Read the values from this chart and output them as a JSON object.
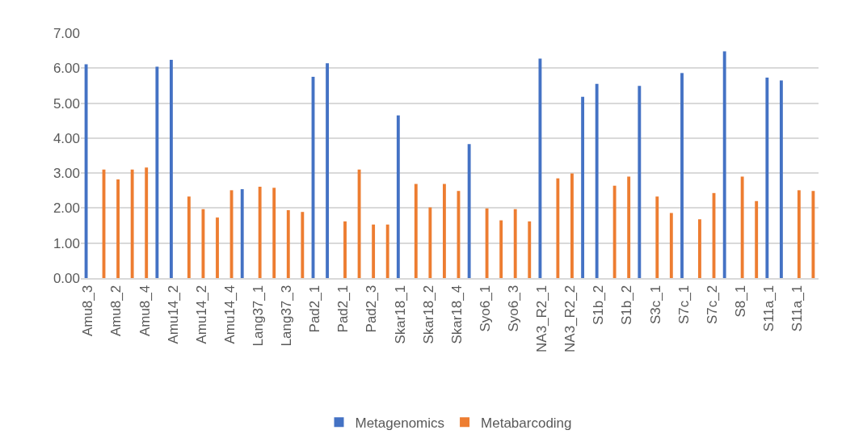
{
  "chart_data": {
    "type": "bar",
    "categories": [
      "Amu8_3",
      null,
      "Amu8_2",
      null,
      "Amu8_4",
      null,
      "Amu14_2",
      null,
      "Amu14_2",
      null,
      "Amu14_4",
      null,
      "Lang37_1",
      null,
      "Lang37_3",
      null,
      "Pad2_1",
      null,
      "Pad2_1",
      null,
      "Pad2_3",
      null,
      "Skar18_1",
      null,
      "Skar18_2",
      null,
      "Skar18_4",
      null,
      "Syo6_1",
      null,
      "Syo6_3",
      null,
      "NA3_R2_1",
      null,
      "NA3_R2_2",
      null,
      "S1b_2",
      null,
      "S1b_2",
      null,
      "S3c_1",
      null,
      "S7c_1",
      null,
      "S7c_2",
      null,
      "S8_1",
      null,
      "S11a_1",
      null,
      "S11a_1",
      null
    ],
    "series": [
      {
        "name": "Metagenomics",
        "color": "#4472c4",
        "values": [
          6.11,
          null,
          null,
          null,
          null,
          6.04,
          6.24,
          null,
          null,
          null,
          null,
          2.54,
          null,
          null,
          null,
          null,
          5.75,
          6.14,
          null,
          null,
          null,
          null,
          4.65,
          null,
          null,
          null,
          null,
          3.83,
          null,
          null,
          null,
          null,
          6.27,
          null,
          null,
          5.18,
          5.55,
          null,
          null,
          5.49,
          null,
          null,
          5.86,
          null,
          null,
          6.48,
          null,
          null,
          5.73,
          5.65,
          null,
          null
        ]
      },
      {
        "name": "Metabarcoding",
        "color": "#ed7d31",
        "values": [
          null,
          3.1,
          2.82,
          3.1,
          3.16,
          null,
          null,
          2.33,
          1.97,
          1.73,
          2.51,
          null,
          2.61,
          2.58,
          1.94,
          1.89,
          null,
          null,
          1.62,
          3.1,
          1.53,
          1.53,
          null,
          2.69,
          2.02,
          2.69,
          2.49,
          null,
          1.99,
          1.65,
          1.97,
          1.62,
          null,
          2.85,
          2.99,
          null,
          null,
          2.64,
          2.9,
          null,
          2.33,
          1.86,
          null,
          1.68,
          2.43,
          null,
          2.9,
          2.2,
          null,
          null,
          2.51,
          2.49
        ]
      }
    ],
    "ylim": [
      0,
      7
    ],
    "yticks": [
      {
        "value": 0,
        "label": "0.00"
      },
      {
        "value": 1,
        "label": "1.00"
      },
      {
        "value": 2,
        "label": "2.00"
      },
      {
        "value": 3,
        "label": "3.00"
      },
      {
        "value": 4,
        "label": "4.00"
      },
      {
        "value": 5,
        "label": "5.00"
      },
      {
        "value": 6,
        "label": "6.00"
      },
      {
        "value": 7,
        "label": "7.00"
      }
    ],
    "grid": "y",
    "legend": "bottom"
  }
}
